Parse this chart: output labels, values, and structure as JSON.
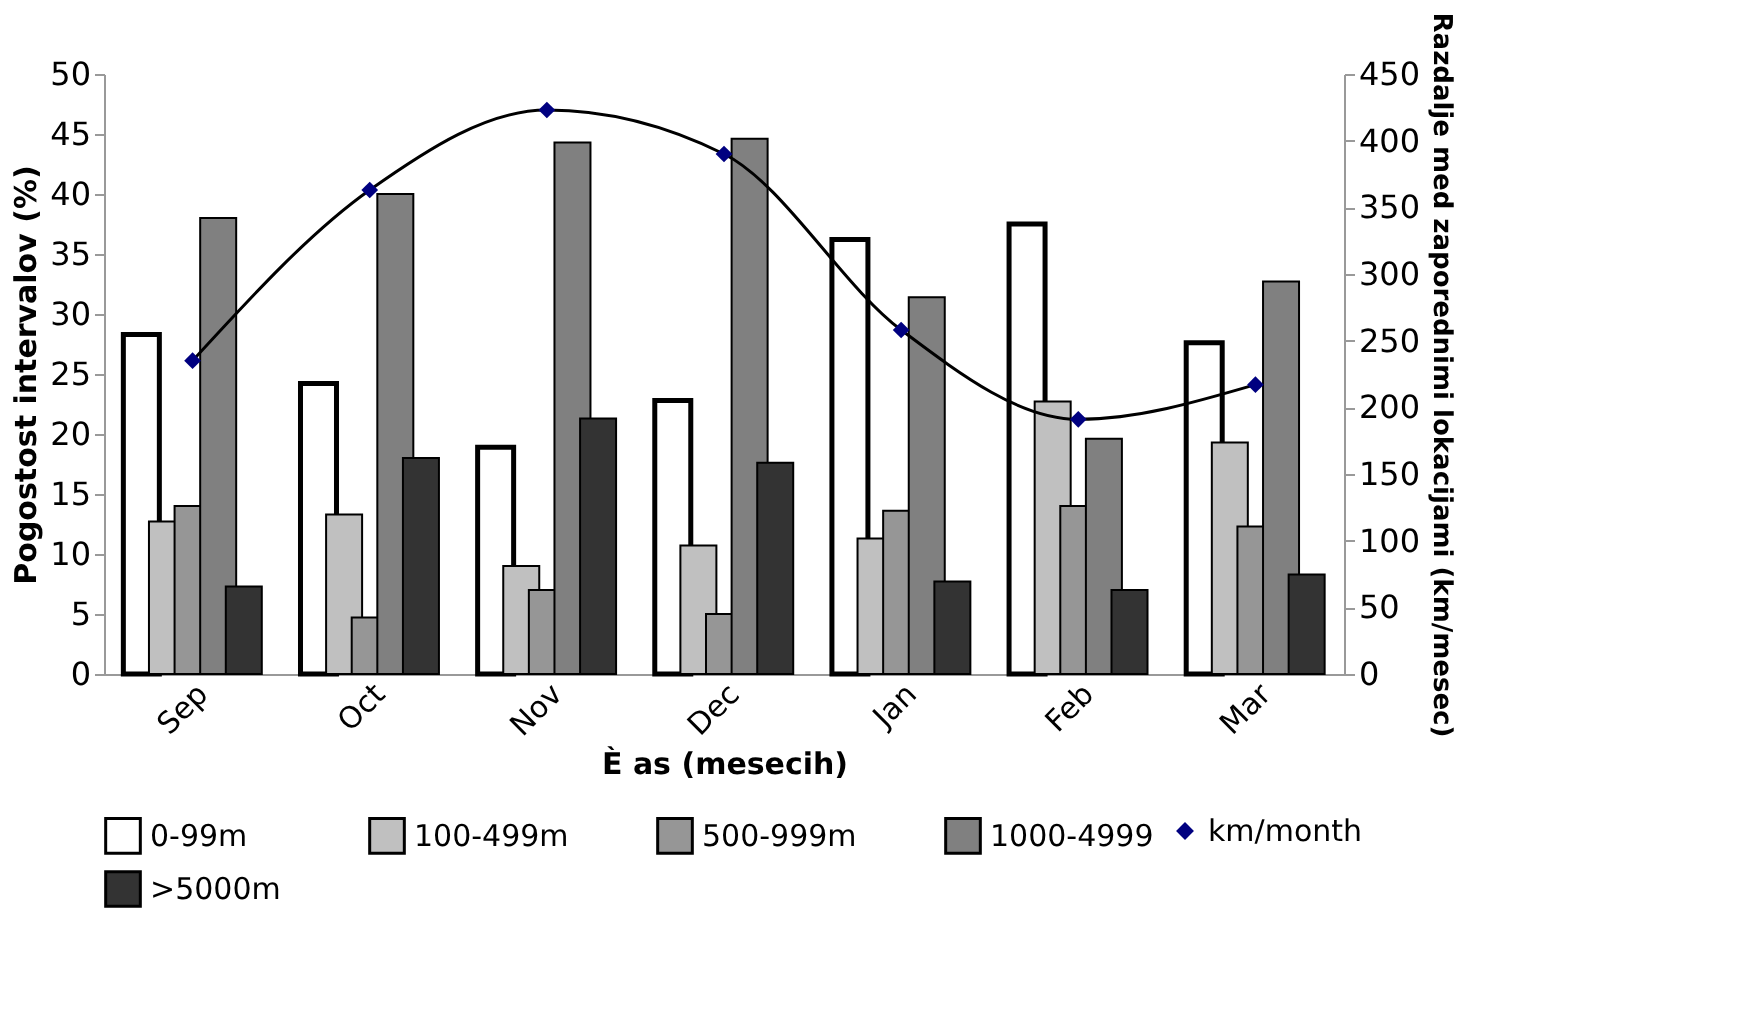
{
  "chart_data": {
    "type": "bar",
    "xlabel": "È as (mesecih)",
    "ylabel": "Pogostost intervalov (%)",
    "y2label": "Razdalje med zaporednimi lokacijami (km/mesec)",
    "categories": [
      "Sep",
      "Oct",
      "Nov",
      "Dec",
      "Jan",
      "Feb",
      "Mar"
    ],
    "series": [
      {
        "name": "0-99m",
        "color": "#ffffff",
        "values": [
          28.3,
          24.2,
          18.9,
          22.8,
          36.2,
          37.5,
          27.6
        ]
      },
      {
        "name": "100-499m",
        "color": "#c0c0c0",
        "values": [
          12.7,
          13.3,
          9.0,
          10.7,
          11.3,
          22.7,
          19.3
        ]
      },
      {
        "name": "500-999m",
        "color": "#969696",
        "values": [
          14.0,
          4.7,
          7.0,
          5.0,
          13.6,
          14.0,
          12.3
        ]
      },
      {
        "name": "1000-4999",
        "color": "#808080",
        "values": [
          38.0,
          40.0,
          44.3,
          44.6,
          31.4,
          19.6,
          32.7
        ]
      },
      {
        "name": ">5000m",
        "color": "#333333",
        "values": [
          7.3,
          18.0,
          21.3,
          17.6,
          7.7,
          7.0,
          8.3
        ]
      },
      {
        "name": "km/month",
        "type": "line",
        "axis": "y2",
        "color": "#000080",
        "marker": "diamond",
        "values": [
          235,
          363,
          423,
          390,
          258,
          191,
          217
        ]
      }
    ],
    "ylim": [
      0,
      50
    ],
    "yticks": [
      0,
      5,
      10,
      15,
      20,
      25,
      30,
      35,
      40,
      45,
      50
    ],
    "y2lim": [
      0,
      450
    ],
    "y2ticks": [
      0,
      50,
      100,
      150,
      200,
      250,
      300,
      350,
      400,
      450
    ],
    "grid": false,
    "legend": "bottom"
  }
}
